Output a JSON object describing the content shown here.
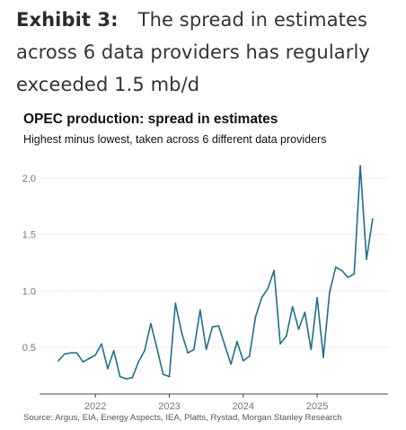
{
  "exhibit": {
    "label": "Exhibit 3:",
    "headline": "The spread in estimates across 6 data providers has regularly exceeded 1.5 mb/d"
  },
  "chart_data": {
    "type": "line",
    "title": "OPEC production: spread in estimates",
    "subtitle": "Highest minus lowest, taken across 6 different data providers",
    "xlabel": "",
    "ylabel": "",
    "x_start": "2021-07",
    "x_step": "1 month",
    "x_ticks": [
      "2022",
      "2023",
      "2024",
      "2025"
    ],
    "y_ticks": [
      "0.5",
      "1.0",
      "1.5",
      "2.0"
    ],
    "ylim": [
      0.18,
      2.28
    ],
    "grid": "horizontal",
    "legend": "none",
    "series": [
      {
        "color": "#1f6f8b",
        "values": [
          0.38,
          0.44,
          0.45,
          0.45,
          0.37,
          0.4,
          0.43,
          0.53,
          0.31,
          0.47,
          0.24,
          0.22,
          0.23,
          0.37,
          0.47,
          0.71,
          0.49,
          0.26,
          0.24,
          0.89,
          0.63,
          0.45,
          0.48,
          0.83,
          0.48,
          0.68,
          0.69,
          0.52,
          0.35,
          0.55,
          0.38,
          0.42,
          0.77,
          0.94,
          1.02,
          1.18,
          0.53,
          0.6,
          0.86,
          0.66,
          0.81,
          0.48,
          0.94,
          0.41,
          0.98,
          1.21,
          1.18,
          1.12,
          1.15,
          2.11,
          1.28,
          1.64
        ]
      }
    ]
  },
  "source": "Source: Argus, EIA, Energy Aspects, IEA, Platts, Rystad, Morgan Stanley Research"
}
